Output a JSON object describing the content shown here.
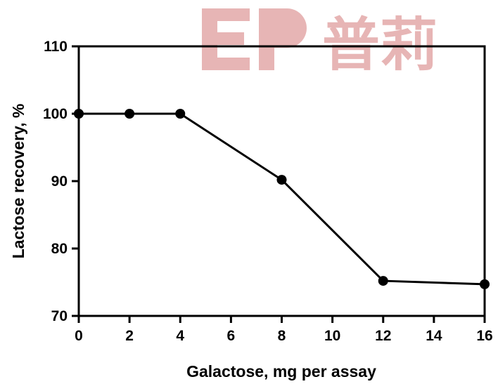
{
  "watermark": {
    "text": "EP 普莉",
    "color": "#d47a7a"
  },
  "chart_data": {
    "type": "line",
    "title": "",
    "xlabel": "Galactose, mg per assay",
    "ylabel": "Lactose recovery, %",
    "xlim": [
      0,
      16
    ],
    "ylim": [
      70,
      110
    ],
    "xticks": [
      0,
      2,
      4,
      6,
      8,
      10,
      12,
      14,
      16
    ],
    "yticks": [
      70,
      80,
      90,
      100,
      110
    ],
    "grid": false,
    "legend": "none",
    "series": [
      {
        "x": [
          0,
          2,
          4,
          8,
          12,
          16
        ],
        "y": [
          100,
          100,
          100,
          90.2,
          75.2,
          74.7
        ],
        "color": "#000000",
        "marker": "circle"
      }
    ]
  }
}
